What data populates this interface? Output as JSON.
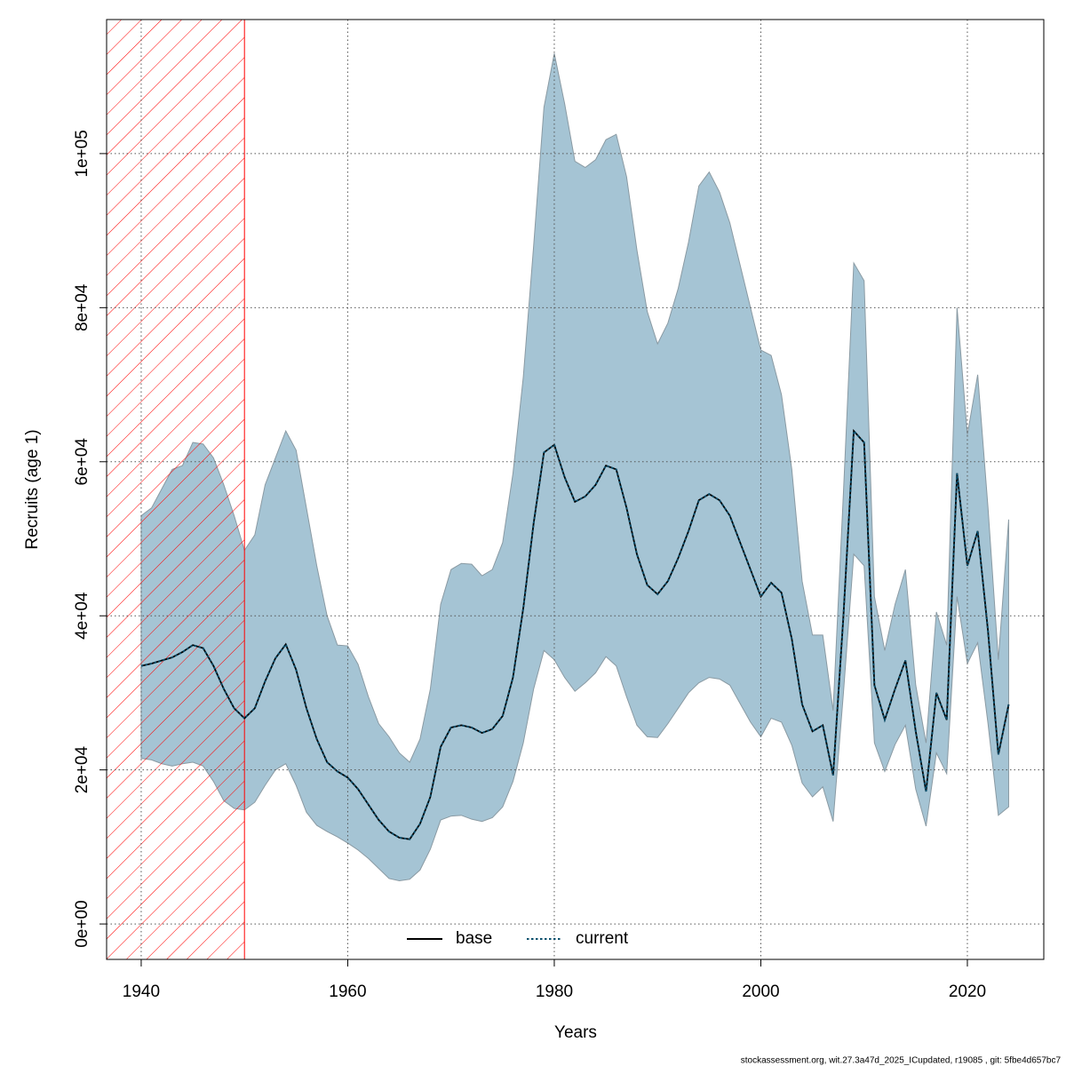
{
  "chart_data": {
    "type": "line",
    "x_label": "Years",
    "y_label": "Recruits (age 1)",
    "footer": "stockassessment.org, wit.27.3a47d_2025_ICupdated, r19085 , git: 5fbe4d657bc7",
    "x": [
      1940,
      1941,
      1942,
      1943,
      1944,
      1945,
      1946,
      1947,
      1948,
      1949,
      1950,
      1951,
      1952,
      1953,
      1954,
      1955,
      1956,
      1957,
      1958,
      1959,
      1960,
      1961,
      1962,
      1963,
      1964,
      1965,
      1966,
      1967,
      1968,
      1969,
      1970,
      1971,
      1972,
      1973,
      1974,
      1975,
      1976,
      1977,
      1978,
      1979,
      1980,
      1981,
      1982,
      1983,
      1984,
      1985,
      1986,
      1987,
      1988,
      1989,
      1990,
      1991,
      1992,
      1993,
      1994,
      1995,
      1996,
      1997,
      1998,
      1999,
      2000,
      2001,
      2002,
      2003,
      2004,
      2005,
      2006,
      2007,
      2008,
      2009,
      2010,
      2011,
      2012,
      2013,
      2014,
      2015,
      2016,
      2017,
      2018,
      2019,
      2020,
      2021,
      2022,
      2023,
      2024
    ],
    "series": [
      {
        "name": "base",
        "color": "#000000",
        "dash": false,
        "values": [
          33500,
          33800,
          34200,
          34600,
          35300,
          36200,
          35800,
          33500,
          30500,
          28000,
          26700,
          28000,
          31500,
          34500,
          36300,
          33000,
          28000,
          24000,
          21000,
          19800,
          19000,
          17500,
          15500,
          13500,
          12000,
          11200,
          11000,
          13000,
          16500,
          23000,
          25500,
          25800,
          25500,
          24800,
          25300,
          27000,
          32000,
          41000,
          52000,
          61200,
          62200,
          58000,
          54800,
          55500,
          57000,
          59500,
          59000,
          54000,
          48000,
          44000,
          42800,
          44500,
          47500,
          51000,
          55000,
          55800,
          55000,
          53000,
          49500,
          46000,
          42500,
          44300,
          43000,
          37000,
          28500,
          25000,
          25800,
          19300,
          40000,
          64000,
          62500,
          31000,
          26500,
          30500,
          34200,
          25000,
          17200,
          30000,
          26500,
          58500,
          46500,
          51000,
          38000,
          22000,
          28500
        ]
      },
      {
        "name": "current",
        "color": "#0b4f6c",
        "dash": true,
        "values": [
          33500,
          33800,
          34200,
          34600,
          35300,
          36200,
          35800,
          33500,
          30500,
          28000,
          26700,
          28000,
          31500,
          34500,
          36300,
          33000,
          28000,
          24000,
          21000,
          19800,
          19000,
          17500,
          15500,
          13500,
          12000,
          11200,
          11000,
          13000,
          16500,
          23000,
          25500,
          25800,
          25500,
          24800,
          25300,
          27000,
          32000,
          41000,
          52000,
          61200,
          62200,
          58000,
          54800,
          55500,
          57000,
          59500,
          59000,
          54000,
          48000,
          44000,
          42800,
          44500,
          47500,
          51000,
          55000,
          55800,
          55000,
          53000,
          49500,
          46000,
          42500,
          44300,
          43000,
          37000,
          28500,
          25000,
          25800,
          19300,
          40000,
          64000,
          62500,
          31000,
          26500,
          30500,
          34200,
          25000,
          17200,
          30000,
          26500,
          58500,
          46500,
          51000,
          38000,
          22000,
          28500
        ]
      }
    ],
    "band": {
      "color": "#a5c4d4",
      "upper": [
        53000,
        54000,
        56500,
        59000,
        59500,
        62500,
        62300,
        60500,
        57000,
        53000,
        48500,
        50500,
        57000,
        60500,
        64000,
        61500,
        54000,
        46500,
        40000,
        36200,
        36100,
        33700,
        29500,
        26000,
        24300,
        22200,
        21000,
        24000,
        30500,
        41500,
        46000,
        46800,
        46700,
        45200,
        46000,
        49500,
        58500,
        71000,
        88000,
        106000,
        113000,
        106500,
        99000,
        98200,
        99200,
        101800,
        102500,
        97000,
        87500,
        79500,
        75300,
        78000,
        82500,
        88500,
        95800,
        97600,
        95000,
        91000,
        85500,
        80000,
        74500,
        73800,
        68700,
        59000,
        44500,
        37500,
        37500,
        27700,
        56000,
        85800,
        83500,
        42500,
        35500,
        41500,
        46000,
        31000,
        23500,
        40500,
        36200,
        80000,
        63500,
        71300,
        54000,
        34300,
        52500
      ],
      "lower": [
        21500,
        21300,
        20800,
        20500,
        20800,
        21000,
        20500,
        18500,
        16000,
        15000,
        14800,
        15800,
        18000,
        20000,
        20800,
        18000,
        14500,
        12800,
        12000,
        11300,
        10500,
        9600,
        8500,
        7200,
        5900,
        5600,
        5800,
        7000,
        9700,
        13500,
        14000,
        14100,
        13600,
        13300,
        13800,
        15200,
        18500,
        23500,
        30500,
        35500,
        34300,
        32000,
        30200,
        31300,
        32600,
        34700,
        33500,
        29500,
        25800,
        24300,
        24200,
        26000,
        28000,
        30000,
        31300,
        32000,
        31800,
        31000,
        28600,
        26200,
        24300,
        26700,
        26200,
        23200,
        18300,
        16500,
        17800,
        13300,
        30000,
        48000,
        46500,
        23500,
        19800,
        23300,
        25800,
        17500,
        12700,
        22200,
        19500,
        42500,
        33800,
        36500,
        26000,
        14100,
        15200
      ]
    },
    "hatched_until": 1950,
    "hatch_color": "#ff0000",
    "xlim": [
      1936.65,
      2027.4
    ],
    "ylim": [
      -4600,
      117400
    ],
    "xticks": [
      1940,
      1960,
      1980,
      2000,
      2020
    ],
    "yticks": [
      {
        "value": 0,
        "label": "0e+00"
      },
      {
        "value": 20000,
        "label": "2e+04"
      },
      {
        "value": 40000,
        "label": "4e+04"
      },
      {
        "value": 60000,
        "label": "6e+04"
      },
      {
        "value": 80000,
        "label": "8e+04"
      },
      {
        "value": 100000,
        "label": "1e+05"
      }
    ],
    "grid": true,
    "legend": "bottom"
  }
}
